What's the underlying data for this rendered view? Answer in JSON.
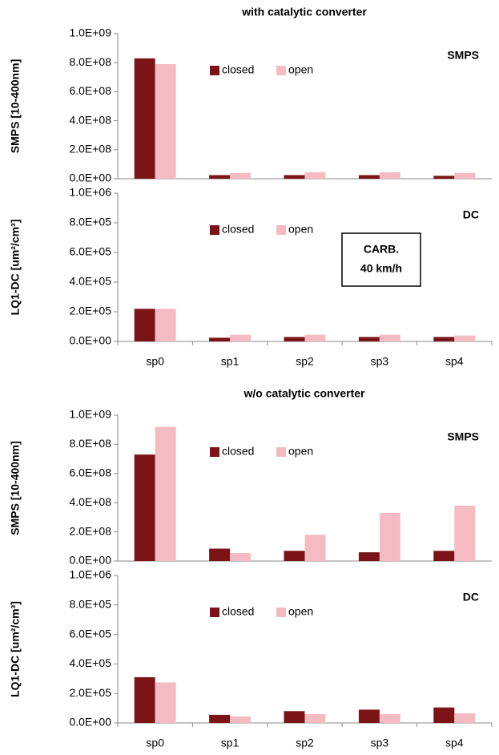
{
  "chart_data": [
    {
      "type": "bar",
      "title": "with catalytic converter",
      "panel_label": "SMPS",
      "y_label": "SMPS [10-400nm]",
      "series": [
        {
          "name": "closed",
          "color": "#7b1416",
          "values": [
            830000000,
            25000000,
            25000000,
            25000000,
            20000000
          ]
        },
        {
          "name": "open",
          "color": "#f4bcc2",
          "values": [
            790000000,
            40000000,
            45000000,
            45000000,
            40000000
          ]
        }
      ],
      "ylim": [
        0,
        1000000000
      ],
      "yticks": [
        {
          "value": 0,
          "label": "0.0E+00"
        },
        {
          "value": 200000000,
          "label": "2.0E+08"
        },
        {
          "value": 400000000,
          "label": "4.0E+08"
        },
        {
          "value": 600000000,
          "label": "6.0E+08"
        },
        {
          "value": 800000000,
          "label": "8.0E+08"
        },
        {
          "value": 1000000000,
          "label": "1.0E+09"
        }
      ]
    },
    {
      "type": "bar",
      "panel_label": "DC",
      "y_label": "LQ1-DC [um²/cm³]",
      "annotation": [
        "CARB.",
        "40 km/h"
      ],
      "categories": [
        "sp0",
        "sp1",
        "sp2",
        "sp3",
        "sp4"
      ],
      "series": [
        {
          "name": "closed",
          "color": "#7b1416",
          "values": [
            220000,
            25000,
            30000,
            30000,
            30000
          ]
        },
        {
          "name": "open",
          "color": "#f4bcc2",
          "values": [
            220000,
            45000,
            45000,
            45000,
            40000
          ]
        }
      ],
      "ylim": [
        0,
        1000000
      ],
      "yticks": [
        {
          "value": 0,
          "label": "0.0E+00"
        },
        {
          "value": 200000,
          "label": "2.0E+05"
        },
        {
          "value": 400000,
          "label": "4.0E+05"
        },
        {
          "value": 600000,
          "label": "6.0E+05"
        },
        {
          "value": 800000,
          "label": "8.0E+05"
        },
        {
          "value": 1000000,
          "label": "1.0E+06"
        }
      ]
    },
    {
      "type": "bar",
      "title": "w/o catalytic converter",
      "panel_label": "SMPS",
      "y_label": "SMPS [10-400nm]",
      "series": [
        {
          "name": "closed",
          "color": "#7b1416",
          "values": [
            730000000,
            85000000,
            70000000,
            60000000,
            70000000
          ]
        },
        {
          "name": "open",
          "color": "#f4bcc2",
          "values": [
            920000000,
            55000000,
            180000000,
            330000000,
            380000000
          ]
        }
      ],
      "ylim": [
        0,
        1000000000
      ],
      "yticks": [
        {
          "value": 0,
          "label": "0.0E+00"
        },
        {
          "value": 200000000,
          "label": "2.0E+08"
        },
        {
          "value": 400000000,
          "label": "4.0E+08"
        },
        {
          "value": 600000000,
          "label": "6.0E+08"
        },
        {
          "value": 800000000,
          "label": "8.0E+08"
        },
        {
          "value": 1000000000,
          "label": "1.0E+09"
        }
      ]
    },
    {
      "type": "bar",
      "panel_label": "DC",
      "y_label": "LQ1-DC [um²/cm³]",
      "categories": [
        "sp0",
        "sp1",
        "sp2",
        "sp3",
        "sp4"
      ],
      "series": [
        {
          "name": "closed",
          "color": "#7b1416",
          "values": [
            310000,
            55000,
            80000,
            90000,
            105000
          ]
        },
        {
          "name": "open",
          "color": "#f4bcc2",
          "values": [
            275000,
            45000,
            60000,
            60000,
            65000
          ]
        }
      ],
      "ylim": [
        0,
        1000000
      ],
      "yticks": [
        {
          "value": 0,
          "label": "0.0E+00"
        },
        {
          "value": 200000,
          "label": "2.0E+05"
        },
        {
          "value": 400000,
          "label": "4.0E+05"
        },
        {
          "value": 600000,
          "label": "6.0E+05"
        },
        {
          "value": 800000,
          "label": "8.0E+05"
        },
        {
          "value": 1000000,
          "label": "1.0E+06"
        }
      ]
    }
  ]
}
